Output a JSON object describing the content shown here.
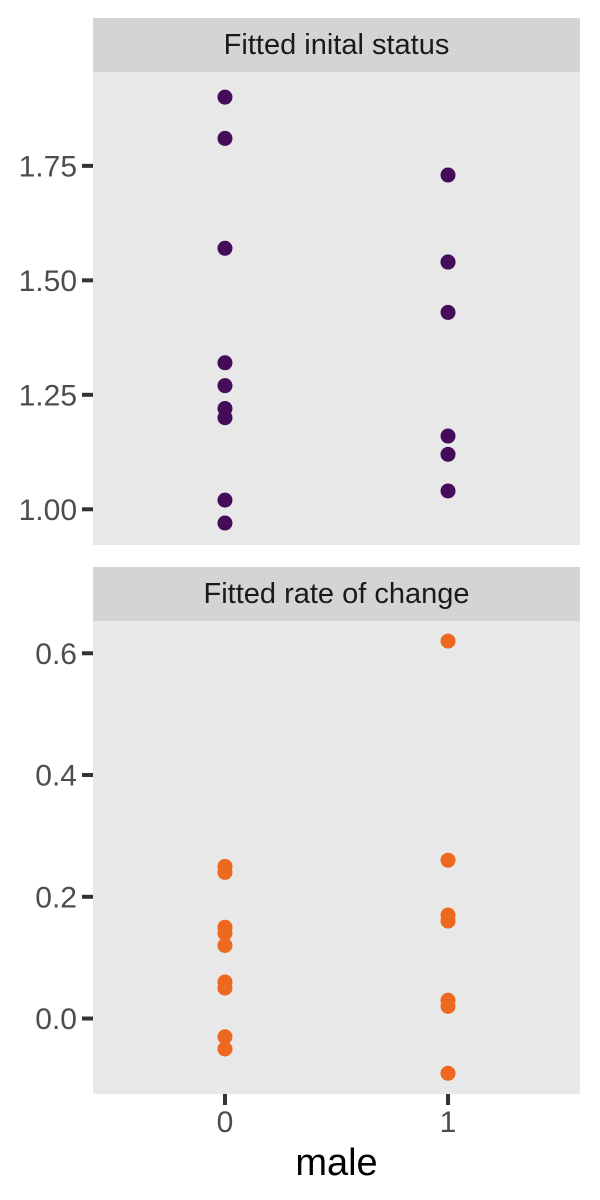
{
  "figure": {
    "xlabel": "male",
    "x_tick_labels": [
      "0",
      "1"
    ],
    "colors": {
      "background": "#FFFFFF",
      "panel_bg": "#E8E8E8",
      "strip_bg": "#D4D4D4",
      "tick_mark": "#333333",
      "tick_label": "#4D4D4D",
      "strip_text": "#1A1A1A",
      "axis_title": "#000000"
    }
  },
  "chart_data": [
    {
      "type": "scatter",
      "title": "Fitted inital status",
      "xlabel": "male",
      "grid": false,
      "legend": "none",
      "x_categories": [
        "0",
        "1"
      ],
      "point_color": "#440C59",
      "ylim": [
        0.922,
        1.955
      ],
      "yticks": [
        {
          "label": "1.00",
          "value": 1.0
        },
        {
          "label": "1.25",
          "value": 1.25
        },
        {
          "label": "1.50",
          "value": 1.5
        },
        {
          "label": "1.75",
          "value": 1.75
        }
      ],
      "series": [
        {
          "name": "male=0",
          "x": "0",
          "values": [
            1.9,
            1.81,
            1.57,
            1.32,
            1.27,
            1.22,
            1.2,
            1.02,
            0.97
          ]
        },
        {
          "name": "male=1",
          "x": "1",
          "values": [
            1.73,
            1.54,
            1.54,
            1.43,
            1.16,
            1.12,
            1.04
          ]
        }
      ]
    },
    {
      "type": "scatter",
      "title": "Fitted rate of change",
      "xlabel": "male",
      "grid": false,
      "legend": "none",
      "x_categories": [
        "0",
        "1"
      ],
      "point_color": "#EC691F",
      "ylim": [
        -0.124,
        0.653
      ],
      "yticks": [
        {
          "label": "0.0",
          "value": 0.0
        },
        {
          "label": "0.2",
          "value": 0.2
        },
        {
          "label": "0.4",
          "value": 0.4
        },
        {
          "label": "0.6",
          "value": 0.6
        }
      ],
      "series": [
        {
          "name": "male=0",
          "x": "0",
          "values": [
            0.25,
            0.24,
            0.15,
            0.14,
            0.12,
            0.06,
            0.05,
            -0.03,
            -0.05
          ]
        },
        {
          "name": "male=1",
          "x": "1",
          "values": [
            0.62,
            0.26,
            0.17,
            0.16,
            0.03,
            0.02,
            -0.09
          ]
        }
      ]
    }
  ]
}
